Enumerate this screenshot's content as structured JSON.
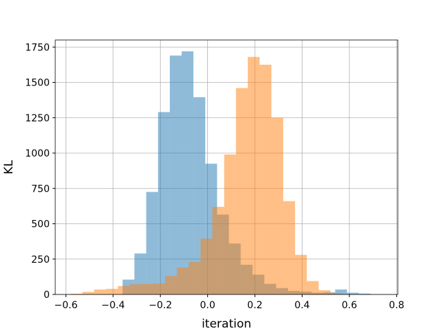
{
  "chart_data": {
    "type": "bar",
    "histogram": true,
    "xlabel": "iteration",
    "ylabel": "KL",
    "xlim": [
      -0.645,
      0.805
    ],
    "ylim": [
      0,
      1800
    ],
    "grid": true,
    "xticks": [
      -0.6,
      -0.4,
      -0.2,
      0.0,
      0.2,
      0.4,
      0.6,
      0.8
    ],
    "xtick_labels": [
      "−0.6",
      "−0.4",
      "−0.2",
      "0.0",
      "0.2",
      "0.4",
      "0.6",
      "0.8"
    ],
    "yticks": [
      0,
      250,
      500,
      750,
      1000,
      1250,
      1500,
      1750
    ],
    "ytick_labels": [
      "0",
      "250",
      "500",
      "750",
      "1000",
      "1250",
      "1500",
      "1750"
    ],
    "series": [
      {
        "color": "#1f77b4",
        "opacity": 0.5,
        "bins": [
          {
            "x0": -0.36,
            "x1": -0.31,
            "count": 105
          },
          {
            "x0": -0.31,
            "x1": -0.26,
            "count": 290
          },
          {
            "x0": -0.26,
            "x1": -0.21,
            "count": 725
          },
          {
            "x0": -0.21,
            "x1": -0.16,
            "count": 1290
          },
          {
            "x0": -0.16,
            "x1": -0.11,
            "count": 1690
          },
          {
            "x0": -0.11,
            "x1": -0.06,
            "count": 1720
          },
          {
            "x0": -0.06,
            "x1": -0.01,
            "count": 1395
          },
          {
            "x0": -0.01,
            "x1": 0.04,
            "count": 925
          },
          {
            "x0": 0.04,
            "x1": 0.09,
            "count": 565
          },
          {
            "x0": 0.09,
            "x1": 0.14,
            "count": 360
          },
          {
            "x0": 0.14,
            "x1": 0.19,
            "count": 210
          },
          {
            "x0": 0.19,
            "x1": 0.24,
            "count": 140
          },
          {
            "x0": 0.24,
            "x1": 0.29,
            "count": 75
          },
          {
            "x0": 0.29,
            "x1": 0.34,
            "count": 45
          },
          {
            "x0": 0.34,
            "x1": 0.39,
            "count": 25
          },
          {
            "x0": 0.39,
            "x1": 0.44,
            "count": 20
          },
          {
            "x0": 0.44,
            "x1": 0.49,
            "count": 12
          },
          {
            "x0": 0.49,
            "x1": 0.54,
            "count": 15
          },
          {
            "x0": 0.54,
            "x1": 0.59,
            "count": 35
          },
          {
            "x0": 0.59,
            "x1": 0.64,
            "count": 12
          },
          {
            "x0": 0.64,
            "x1": 0.69,
            "count": 6
          }
        ]
      },
      {
        "color": "#ff7f0e",
        "opacity": 0.5,
        "bins": [
          {
            "x0": -0.58,
            "x1": -0.53,
            "count": 5
          },
          {
            "x0": -0.53,
            "x1": -0.48,
            "count": 18
          },
          {
            "x0": -0.48,
            "x1": -0.43,
            "count": 35
          },
          {
            "x0": -0.43,
            "x1": -0.38,
            "count": 40
          },
          {
            "x0": -0.38,
            "x1": -0.33,
            "count": 60
          },
          {
            "x0": -0.33,
            "x1": -0.28,
            "count": 72
          },
          {
            "x0": -0.28,
            "x1": -0.23,
            "count": 75
          },
          {
            "x0": -0.23,
            "x1": -0.18,
            "count": 78
          },
          {
            "x0": -0.18,
            "x1": -0.13,
            "count": 130
          },
          {
            "x0": -0.13,
            "x1": -0.08,
            "count": 190
          },
          {
            "x0": -0.08,
            "x1": -0.03,
            "count": 230
          },
          {
            "x0": -0.03,
            "x1": 0.02,
            "count": 395
          },
          {
            "x0": 0.02,
            "x1": 0.07,
            "count": 620
          },
          {
            "x0": 0.07,
            "x1": 0.12,
            "count": 990
          },
          {
            "x0": 0.12,
            "x1": 0.17,
            "count": 1460
          },
          {
            "x0": 0.17,
            "x1": 0.22,
            "count": 1680
          },
          {
            "x0": 0.22,
            "x1": 0.27,
            "count": 1625
          },
          {
            "x0": 0.27,
            "x1": 0.32,
            "count": 1250
          },
          {
            "x0": 0.32,
            "x1": 0.37,
            "count": 660
          },
          {
            "x0": 0.37,
            "x1": 0.42,
            "count": 280
          },
          {
            "x0": 0.42,
            "x1": 0.47,
            "count": 95
          },
          {
            "x0": 0.47,
            "x1": 0.52,
            "count": 30
          },
          {
            "x0": 0.52,
            "x1": 0.57,
            "count": 10
          }
        ]
      }
    ]
  }
}
